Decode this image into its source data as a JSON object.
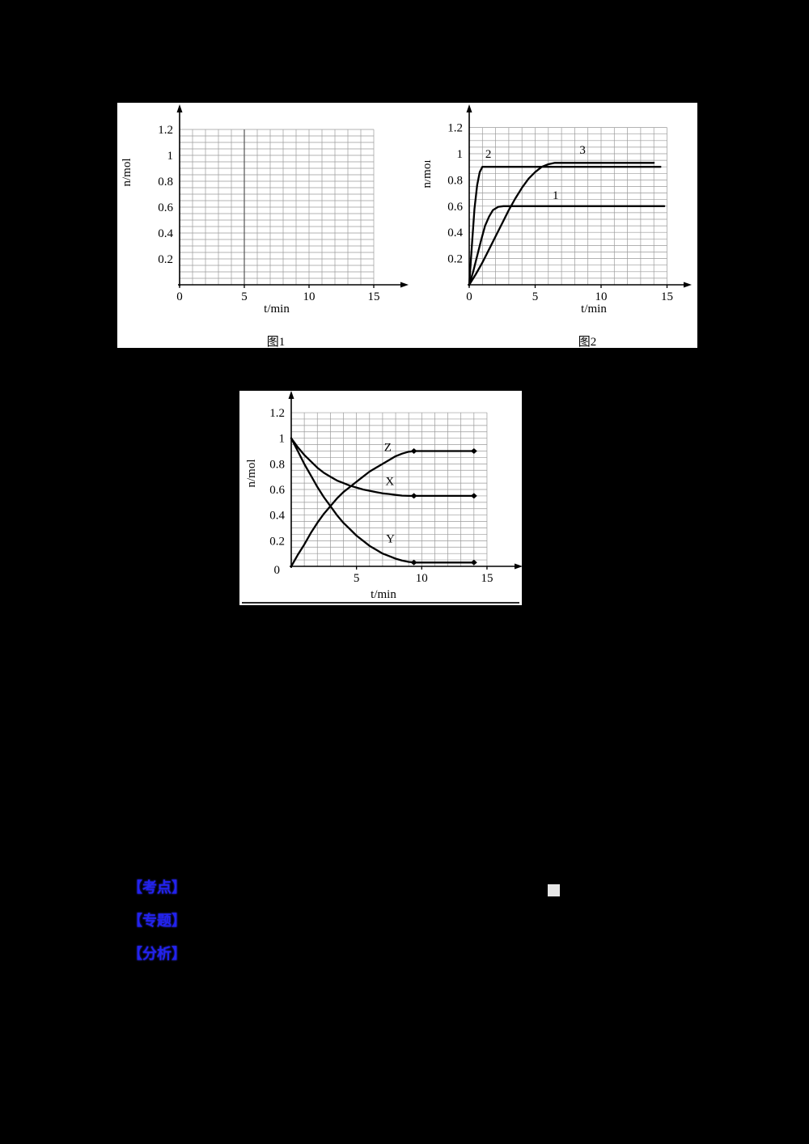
{
  "colors": {
    "page_bg": "#000000",
    "panel_bg": "#ffffff",
    "ink": "#000000",
    "grid": "#9a9a9a",
    "annotation_blue": "#2222ee",
    "square": "#e6e6e6"
  },
  "figures": {
    "fig1_caption": "图1",
    "fig2_caption": "图2"
  },
  "annotations": {
    "item1": "【考点】",
    "item2": "【专题】",
    "item3": "【分析】"
  },
  "chart_data": [
    {
      "type": "line",
      "title": "图1",
      "xlabel": "t/min",
      "ylabel": "n/mol",
      "xlim": [
        0,
        15
      ],
      "ylim": [
        0,
        1.2
      ],
      "xticks": [
        0,
        5,
        10,
        15
      ],
      "yticks": [
        0.2,
        0.4,
        0.6,
        0.8,
        1,
        1.2
      ],
      "grid": true,
      "grid_step_x": 1,
      "grid_step_y": 0.05,
      "highlight_vlines": [
        5
      ],
      "series": []
    },
    {
      "type": "line",
      "title": "图2",
      "xlabel": "t/min",
      "ylabel": "n/mol",
      "xlim": [
        0,
        15
      ],
      "ylim": [
        0,
        1.2
      ],
      "xticks": [
        0,
        5,
        10,
        15
      ],
      "yticks": [
        0.2,
        0.4,
        0.6,
        0.8,
        1,
        1.2
      ],
      "grid": true,
      "grid_step_x": 1,
      "grid_step_y": 0.05,
      "series": [
        {
          "name": "2",
          "plateau": 0.9,
          "points": [
            [
              0,
              0
            ],
            [
              0.2,
              0.3
            ],
            [
              0.4,
              0.58
            ],
            [
              0.6,
              0.76
            ],
            [
              0.8,
              0.86
            ],
            [
              1,
              0.9
            ],
            [
              2,
              0.9
            ],
            [
              14.5,
              0.9
            ]
          ],
          "label": {
            "text": "2",
            "x": 1.45,
            "y": 0.97
          }
        },
        {
          "name": "3",
          "plateau": 0.93,
          "points": [
            [
              0,
              0
            ],
            [
              0.5,
              0.08
            ],
            [
              1,
              0.17
            ],
            [
              1.5,
              0.27
            ],
            [
              2,
              0.37
            ],
            [
              2.5,
              0.47
            ],
            [
              3,
              0.57
            ],
            [
              3.5,
              0.66
            ],
            [
              4,
              0.74
            ],
            [
              4.5,
              0.81
            ],
            [
              5,
              0.86
            ],
            [
              5.5,
              0.9
            ],
            [
              6,
              0.92
            ],
            [
              6.5,
              0.93
            ],
            [
              14,
              0.93
            ]
          ],
          "label": {
            "text": "3",
            "x": 8.6,
            "y": 1.0
          }
        },
        {
          "name": "1",
          "plateau": 0.6,
          "points": [
            [
              0,
              0
            ],
            [
              0.3,
              0.1
            ],
            [
              0.6,
              0.22
            ],
            [
              0.9,
              0.34
            ],
            [
              1.2,
              0.45
            ],
            [
              1.5,
              0.52
            ],
            [
              1.8,
              0.57
            ],
            [
              2.2,
              0.595
            ],
            [
              2.6,
              0.6
            ],
            [
              14.8,
              0.6
            ]
          ],
          "label": {
            "text": "1",
            "x": 6.55,
            "y": 0.655
          }
        }
      ]
    },
    {
      "type": "line",
      "title": "",
      "xlabel": "t/min",
      "ylabel": "n/mol",
      "xlim": [
        0,
        15
      ],
      "ylim": [
        0,
        1.2
      ],
      "xticks": [
        5,
        10,
        15
      ],
      "yticks": [
        0.2,
        0.4,
        0.6,
        0.8,
        1,
        1.2
      ],
      "origin_label": "0",
      "grid": true,
      "grid_step_x": 1,
      "grid_step_y": 0.05,
      "series": [
        {
          "name": "Z",
          "plateau": 0.9,
          "points": [
            [
              0,
              0
            ],
            [
              0.5,
              0.09
            ],
            [
              1,
              0.17
            ],
            [
              1.5,
              0.26
            ],
            [
              2,
              0.34
            ],
            [
              2.5,
              0.41
            ],
            [
              3,
              0.47
            ],
            [
              3.5,
              0.53
            ],
            [
              4,
              0.58
            ],
            [
              4.5,
              0.62
            ],
            [
              5,
              0.66
            ],
            [
              5.5,
              0.7
            ],
            [
              6,
              0.74
            ],
            [
              6.5,
              0.77
            ],
            [
              7,
              0.8
            ],
            [
              7.5,
              0.83
            ],
            [
              8,
              0.86
            ],
            [
              8.5,
              0.88
            ],
            [
              9,
              0.895
            ],
            [
              9.5,
              0.9
            ],
            [
              14,
              0.9
            ]
          ],
          "markers": [
            [
              9.4,
              0.9
            ],
            [
              14,
              0.9
            ]
          ],
          "label": {
            "text": "Z",
            "x": 7.4,
            "y": 0.9
          }
        },
        {
          "name": "X",
          "plateau": 0.55,
          "points": [
            [
              0,
              1
            ],
            [
              0.5,
              0.93
            ],
            [
              1,
              0.87
            ],
            [
              1.5,
              0.82
            ],
            [
              2,
              0.77
            ],
            [
              2.5,
              0.73
            ],
            [
              3,
              0.7
            ],
            [
              3.5,
              0.67
            ],
            [
              4,
              0.65
            ],
            [
              4.5,
              0.63
            ],
            [
              5,
              0.615
            ],
            [
              5.5,
              0.6
            ],
            [
              6,
              0.59
            ],
            [
              6.5,
              0.58
            ],
            [
              7,
              0.57
            ],
            [
              7.5,
              0.565
            ],
            [
              8,
              0.558
            ],
            [
              8.5,
              0.552
            ],
            [
              9,
              0.55
            ],
            [
              9.5,
              0.55
            ],
            [
              14,
              0.55
            ]
          ],
          "markers": [
            [
              9.4,
              0.55
            ],
            [
              14,
              0.55
            ]
          ],
          "label": {
            "text": "X",
            "x": 7.55,
            "y": 0.635
          }
        },
        {
          "name": "Y",
          "plateau": 0.03,
          "points": [
            [
              0,
              1
            ],
            [
              0.5,
              0.9
            ],
            [
              1,
              0.8
            ],
            [
              1.5,
              0.71
            ],
            [
              2,
              0.62
            ],
            [
              2.5,
              0.54
            ],
            [
              3,
              0.47
            ],
            [
              3.5,
              0.4
            ],
            [
              4,
              0.34
            ],
            [
              4.5,
              0.29
            ],
            [
              5,
              0.24
            ],
            [
              5.5,
              0.2
            ],
            [
              6,
              0.16
            ],
            [
              6.5,
              0.13
            ],
            [
              7,
              0.1
            ],
            [
              7.5,
              0.08
            ],
            [
              8,
              0.06
            ],
            [
              8.5,
              0.045
            ],
            [
              9,
              0.035
            ],
            [
              9.5,
              0.03
            ],
            [
              14,
              0.03
            ]
          ],
          "markers": [
            [
              9.4,
              0.03
            ],
            [
              14,
              0.03
            ]
          ],
          "label": {
            "text": "Y",
            "x": 7.6,
            "y": 0.185
          }
        }
      ]
    }
  ]
}
